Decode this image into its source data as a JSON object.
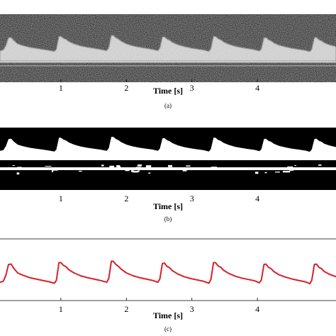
{
  "chart_data": [
    {
      "panel": "a",
      "type": "heatmap",
      "caption": "(a)",
      "xlabel": "Time [s]",
      "x_ticks": [
        1,
        2,
        3,
        4
      ],
      "xlim": [
        0.07,
        5.2
      ],
      "beat_onsets_s": [
        0.2,
        0.97,
        1.77,
        2.55,
        3.33,
        4.1,
        4.87
      ]
    },
    {
      "panel": "b",
      "type": "heatmap",
      "caption": "(b)",
      "xlabel": "Time [s]",
      "x_ticks": [
        1,
        2,
        3,
        4
      ],
      "xlim": [
        0.07,
        5.2
      ],
      "beat_onsets_s": [
        0.2,
        0.97,
        1.77,
        2.55,
        3.33,
        4.1,
        4.87
      ]
    },
    {
      "panel": "c",
      "type": "line",
      "caption": "(c)",
      "xlabel": "Time [s]",
      "x_ticks": [
        1,
        2,
        3,
        4
      ],
      "xlim": [
        0.07,
        5.2
      ],
      "ylim": [
        0,
        1
      ],
      "line_color": "#d8202b",
      "series": [
        {
          "x": [
            0.07,
            0.12,
            0.16,
            0.2,
            0.24,
            0.28,
            0.34,
            0.42,
            0.52,
            0.62,
            0.72,
            0.82,
            0.9,
            0.93,
            0.97,
            1.0,
            1.04,
            1.08,
            1.12,
            1.2,
            1.3,
            1.4,
            1.5,
            1.6,
            1.7,
            1.73,
            1.77,
            1.8,
            1.84,
            1.88,
            1.92,
            2.0,
            2.1,
            2.2,
            2.3,
            2.4,
            2.48,
            2.51,
            2.55,
            2.58,
            2.62,
            2.66,
            2.7,
            2.78,
            2.88,
            2.98,
            3.08,
            3.18,
            3.26,
            3.29,
            3.33,
            3.36,
            3.4,
            3.44,
            3.48,
            3.56,
            3.66,
            3.76,
            3.86,
            3.96,
            4.03,
            4.06,
            4.1,
            4.13,
            4.17,
            4.21,
            4.25,
            4.33,
            4.43,
            4.53,
            4.63,
            4.73,
            4.8,
            4.83,
            4.87,
            4.9,
            4.94,
            4.98,
            5.02,
            5.1,
            5.2
          ],
          "y": [
            0.3,
            0.32,
            0.45,
            0.68,
            0.69,
            0.6,
            0.5,
            0.45,
            0.4,
            0.37,
            0.34,
            0.31,
            0.28,
            0.34,
            0.72,
            0.72,
            0.66,
            0.63,
            0.57,
            0.5,
            0.44,
            0.4,
            0.37,
            0.34,
            0.3,
            0.38,
            0.75,
            0.75,
            0.68,
            0.64,
            0.58,
            0.5,
            0.44,
            0.4,
            0.37,
            0.34,
            0.3,
            0.37,
            0.7,
            0.71,
            0.64,
            0.61,
            0.55,
            0.48,
            0.42,
            0.38,
            0.35,
            0.32,
            0.28,
            0.36,
            0.72,
            0.72,
            0.65,
            0.62,
            0.56,
            0.49,
            0.43,
            0.39,
            0.36,
            0.33,
            0.29,
            0.35,
            0.68,
            0.69,
            0.62,
            0.59,
            0.53,
            0.46,
            0.41,
            0.37,
            0.34,
            0.31,
            0.27,
            0.34,
            0.68,
            0.69,
            0.62,
            0.59,
            0.53,
            0.47,
            0.42
          ]
        }
      ]
    }
  ]
}
